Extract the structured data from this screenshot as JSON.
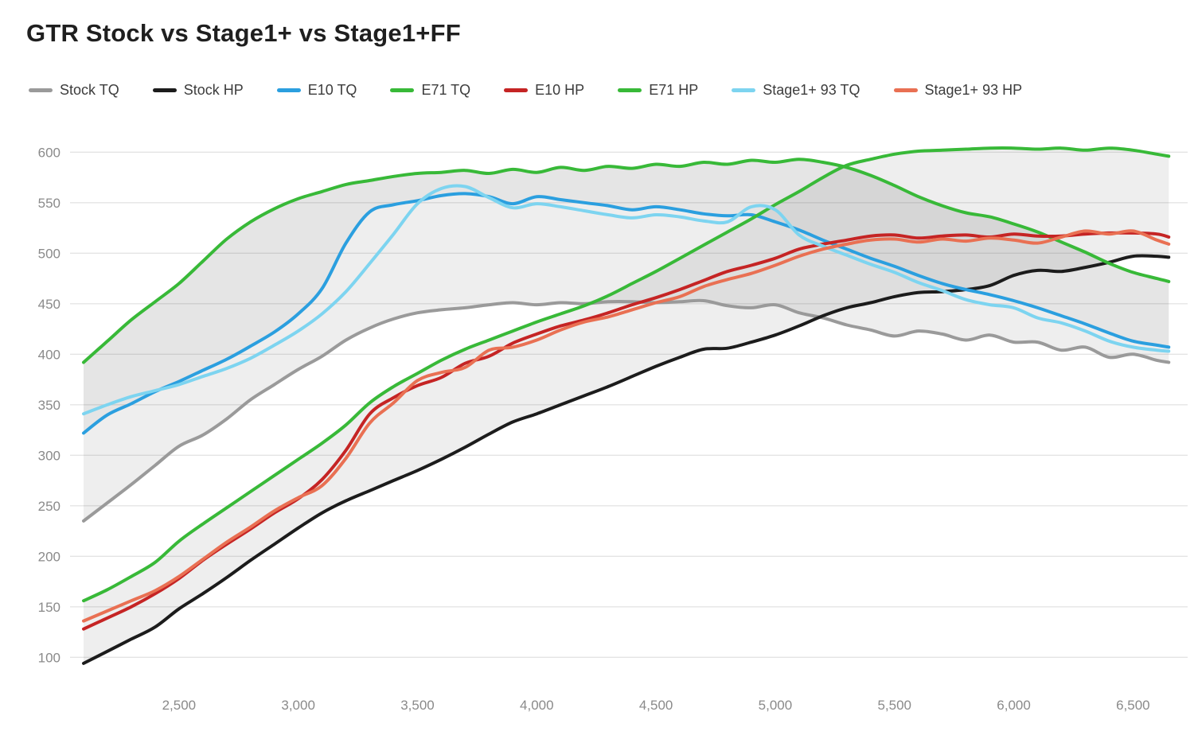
{
  "title": "GTR Stock vs Stage1+ vs Stage1+FF",
  "chart_data": {
    "type": "line",
    "title": "GTR Stock vs Stage1+ vs Stage1+FF",
    "legend_position": "top",
    "grid": "horizontal",
    "x_range": [
      2100,
      6650
    ],
    "y_range": [
      83,
      617
    ],
    "x_axis": {
      "ticks": [
        {
          "value": 2500,
          "label": "2,500"
        },
        {
          "value": 3000,
          "label": "3,000"
        },
        {
          "value": 3500,
          "label": "3,500"
        },
        {
          "value": 4000,
          "label": "4,000"
        },
        {
          "value": 4500,
          "label": "4,500"
        },
        {
          "value": 5000,
          "label": "5,000"
        },
        {
          "value": 5500,
          "label": "5,500"
        },
        {
          "value": 6000,
          "label": "6,000"
        },
        {
          "value": 6500,
          "label": "6,500"
        }
      ]
    },
    "y_axis": {
      "ticks": [
        {
          "value": 100,
          "label": "100"
        },
        {
          "value": 150,
          "label": "150"
        },
        {
          "value": 200,
          "label": "200"
        },
        {
          "value": 250,
          "label": "250"
        },
        {
          "value": 300,
          "label": "300"
        },
        {
          "value": 350,
          "label": "350"
        },
        {
          "value": 400,
          "label": "400"
        },
        {
          "value": 450,
          "label": "450"
        },
        {
          "value": 500,
          "label": "500"
        },
        {
          "value": 550,
          "label": "550"
        },
        {
          "value": 600,
          "label": "600"
        }
      ]
    },
    "x": [
      2100,
      2200,
      2300,
      2400,
      2500,
      2600,
      2700,
      2800,
      2900,
      3000,
      3100,
      3200,
      3300,
      3400,
      3500,
      3600,
      3700,
      3800,
      3900,
      4000,
      4100,
      4200,
      4300,
      4400,
      4500,
      4600,
      4700,
      4800,
      4900,
      5000,
      5100,
      5200,
      5300,
      5400,
      5500,
      5600,
      5700,
      5800,
      5900,
      6000,
      6100,
      6200,
      6300,
      6400,
      6500,
      6600,
      6650
    ],
    "series": [
      {
        "name": "Stock TQ",
        "color": "#9a9a9a",
        "values": [
          235,
          253,
          271,
          290,
          309,
          320,
          336,
          355,
          370,
          385,
          398,
          414,
          426,
          435,
          441,
          444,
          446,
          449,
          451,
          449,
          451,
          450,
          452,
          452,
          451,
          452,
          453,
          448,
          446,
          449,
          441,
          436,
          429,
          424,
          418,
          423,
          420,
          414,
          419,
          412,
          412,
          404,
          407,
          397,
          400,
          394,
          392
        ]
      },
      {
        "name": "Stock HP",
        "color": "#1c1c1c",
        "values": [
          94,
          106,
          118,
          130,
          148,
          163,
          179,
          196,
          212,
          228,
          243,
          255,
          265,
          275,
          285,
          296,
          308,
          321,
          333,
          341,
          350,
          359,
          368,
          378,
          388,
          397,
          405,
          406,
          412,
          419,
          428,
          438,
          446,
          451,
          457,
          461,
          462,
          464,
          468,
          478,
          483,
          482,
          486,
          491,
          497,
          497,
          496
        ]
      },
      {
        "name": "E10 TQ",
        "color": "#2b9fdf",
        "values": [
          322,
          340,
          351,
          363,
          373,
          384,
          395,
          408,
          422,
          440,
          465,
          510,
          541,
          548,
          552,
          557,
          559,
          556,
          549,
          556,
          553,
          550,
          547,
          543,
          546,
          543,
          539,
          537,
          538,
          531,
          523,
          513,
          504,
          495,
          487,
          478,
          470,
          464,
          459,
          453,
          446,
          438,
          430,
          421,
          413,
          409,
          407
        ]
      },
      {
        "name": "E71 TQ",
        "color": "#38b938",
        "values": [
          392,
          413,
          434,
          452,
          470,
          492,
          514,
          531,
          544,
          554,
          561,
          568,
          572,
          576,
          579,
          580,
          582,
          579,
          583,
          580,
          585,
          582,
          586,
          584,
          588,
          586,
          590,
          588,
          592,
          590,
          593,
          590,
          585,
          577,
          567,
          556,
          547,
          540,
          536,
          529,
          521,
          511,
          501,
          490,
          481,
          475,
          472
        ]
      },
      {
        "name": "E10 HP",
        "color": "#c52424",
        "values": [
          128,
          139,
          150,
          163,
          178,
          196,
          212,
          227,
          243,
          257,
          276,
          305,
          341,
          357,
          369,
          377,
          391,
          398,
          411,
          420,
          428,
          434,
          441,
          449,
          456,
          464,
          473,
          482,
          488,
          495,
          504,
          509,
          513,
          517,
          518,
          515,
          517,
          518,
          516,
          519,
          517,
          517,
          519,
          520,
          520,
          519,
          516
        ]
      },
      {
        "name": "E71 HP",
        "color": "#38b938",
        "values": [
          156,
          167,
          180,
          194,
          215,
          232,
          248,
          264,
          280,
          296,
          312,
          330,
          352,
          368,
          381,
          394,
          405,
          414,
          423,
          432,
          440,
          448,
          458,
          470,
          482,
          495,
          508,
          521,
          534,
          548,
          561,
          575,
          587,
          593,
          598,
          601,
          602,
          603,
          604,
          604,
          603,
          604,
          602,
          604,
          602,
          598,
          596
        ]
      },
      {
        "name": "Stage1+ 93 TQ",
        "color": "#7dd4f0",
        "values": [
          341,
          350,
          358,
          364,
          370,
          378,
          386,
          396,
          409,
          423,
          440,
          462,
          490,
          519,
          549,
          564,
          566,
          555,
          545,
          549,
          546,
          542,
          538,
          535,
          538,
          536,
          532,
          531,
          546,
          543,
          518,
          507,
          498,
          489,
          481,
          471,
          463,
          454,
          449,
          446,
          436,
          431,
          423,
          413,
          407,
          404,
          403
        ]
      },
      {
        "name": "Stage1+ 93 HP",
        "color": "#e97053",
        "values": [
          136,
          146,
          156,
          166,
          180,
          197,
          214,
          229,
          245,
          258,
          270,
          297,
          332,
          352,
          374,
          382,
          387,
          404,
          407,
          414,
          424,
          432,
          437,
          444,
          451,
          457,
          467,
          474,
          480,
          488,
          497,
          504,
          509,
          513,
          514,
          511,
          514,
          512,
          515,
          513,
          510,
          516,
          522,
          519,
          522,
          513,
          509
        ]
      }
    ],
    "shaded_deltas": [
      {
        "upper": "E71 TQ",
        "lower": "Stock TQ",
        "color": "rgba(90,90,90,0.10)"
      },
      {
        "upper": "E71 TQ",
        "lower": "E10 TQ",
        "color": "rgba(90,90,90,0.06)"
      },
      {
        "upper": "E71 HP",
        "lower": "Stock HP",
        "color": "rgba(90,90,90,0.10)"
      }
    ]
  }
}
